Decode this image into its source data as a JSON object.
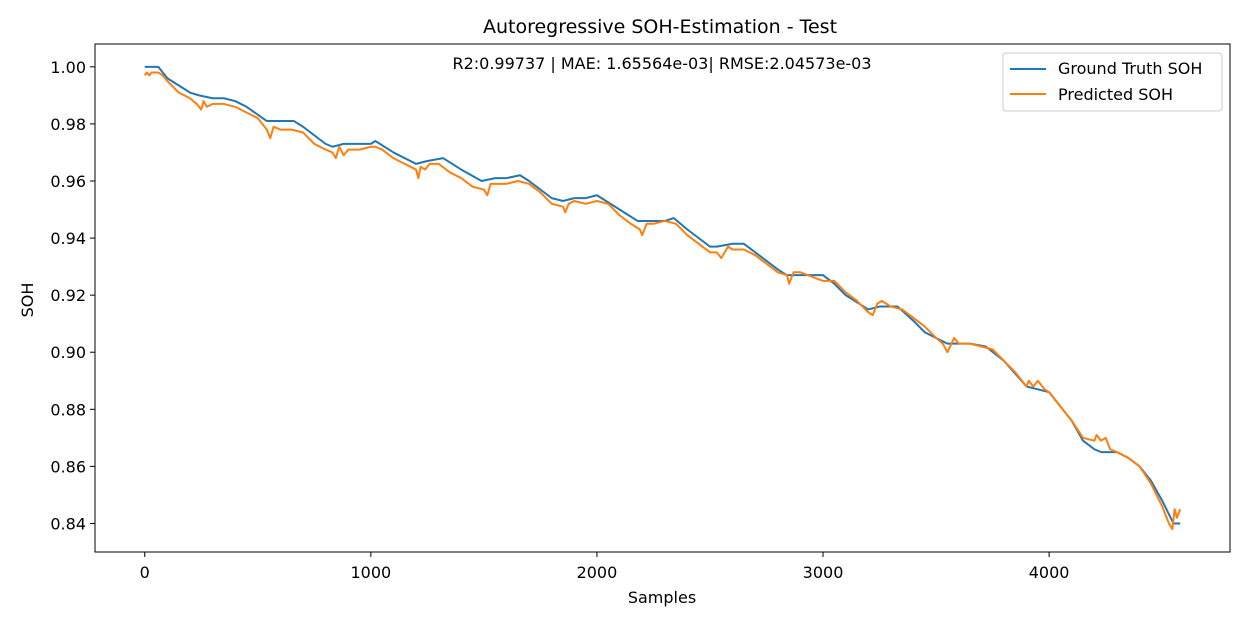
{
  "chart_data": {
    "type": "line",
    "title": "Autoregressive SOH-Estimation - Test",
    "annotation": "R2:0.99737 | MAE: 1.65564e-03| RMSE:2.04573e-03",
    "xlabel": "Samples",
    "ylabel": "SOH",
    "xlim": [
      -220,
      4800
    ],
    "ylim": [
      0.83,
      1.008
    ],
    "x_ticks": [
      0,
      1000,
      2000,
      3000,
      4000
    ],
    "x_tick_labels": [
      "0",
      "1000",
      "2000",
      "3000",
      "4000"
    ],
    "y_ticks": [
      0.84,
      0.86,
      0.88,
      0.9,
      0.92,
      0.94,
      0.96,
      0.98,
      1.0
    ],
    "y_tick_labels": [
      "0.84",
      "0.86",
      "0.88",
      "0.90",
      "0.92",
      "0.94",
      "0.96",
      "0.98",
      "1.00"
    ],
    "grid": false,
    "legend_position": "top-right",
    "series": [
      {
        "name": "Ground Truth SOH",
        "color": "#1f77b4",
        "x": [
          0,
          60,
          100,
          200,
          240,
          300,
          350,
          400,
          450,
          540,
          600,
          660,
          700,
          800,
          830,
          880,
          950,
          1000,
          1020,
          1100,
          1200,
          1250,
          1320,
          1400,
          1490,
          1550,
          1600,
          1660,
          1700,
          1800,
          1850,
          1900,
          1950,
          2000,
          2100,
          2180,
          2250,
          2300,
          2340,
          2400,
          2500,
          2530,
          2600,
          2650,
          2700,
          2800,
          2840,
          2900,
          3000,
          3050,
          3100,
          3200,
          3250,
          3300,
          3330,
          3400,
          3450,
          3500,
          3550,
          3600,
          3650,
          3720,
          3800,
          3900,
          3950,
          4000,
          4050,
          4100,
          4150,
          4200,
          4230,
          4300,
          4350,
          4400,
          4450,
          4500,
          4550,
          4580
        ],
        "y": [
          1.0,
          1.0,
          0.996,
          0.991,
          0.99,
          0.989,
          0.989,
          0.988,
          0.986,
          0.981,
          0.981,
          0.981,
          0.979,
          0.973,
          0.972,
          0.973,
          0.973,
          0.973,
          0.974,
          0.97,
          0.966,
          0.967,
          0.968,
          0.964,
          0.96,
          0.961,
          0.961,
          0.962,
          0.96,
          0.954,
          0.953,
          0.954,
          0.954,
          0.955,
          0.95,
          0.946,
          0.946,
          0.946,
          0.947,
          0.943,
          0.937,
          0.937,
          0.938,
          0.938,
          0.935,
          0.929,
          0.927,
          0.927,
          0.927,
          0.924,
          0.92,
          0.915,
          0.916,
          0.916,
          0.916,
          0.911,
          0.907,
          0.905,
          0.903,
          0.903,
          0.903,
          0.902,
          0.897,
          0.888,
          0.887,
          0.886,
          0.881,
          0.876,
          0.869,
          0.866,
          0.865,
          0.865,
          0.863,
          0.86,
          0.855,
          0.848,
          0.84,
          0.84
        ]
      },
      {
        "name": "Predicted SOH",
        "color": "#ff7f0e",
        "x": [
          0,
          10,
          20,
          30,
          40,
          60,
          80,
          100,
          150,
          200,
          230,
          250,
          260,
          275,
          300,
          350,
          400,
          450,
          500,
          540,
          555,
          570,
          600,
          650,
          700,
          750,
          800,
          830,
          845,
          860,
          880,
          900,
          950,
          1000,
          1020,
          1050,
          1100,
          1150,
          1200,
          1210,
          1220,
          1240,
          1260,
          1300,
          1350,
          1400,
          1450,
          1500,
          1515,
          1530,
          1560,
          1600,
          1650,
          1700,
          1750,
          1800,
          1850,
          1860,
          1875,
          1900,
          1950,
          2000,
          2050,
          2100,
          2150,
          2190,
          2200,
          2220,
          2250,
          2300,
          2350,
          2400,
          2450,
          2500,
          2530,
          2550,
          2580,
          2600,
          2650,
          2700,
          2750,
          2800,
          2840,
          2850,
          2870,
          2900,
          3000,
          3050,
          3100,
          3150,
          3200,
          3220,
          3240,
          3260,
          3300,
          3350,
          3400,
          3450,
          3500,
          3530,
          3550,
          3580,
          3600,
          3650,
          3700,
          3750,
          3800,
          3850,
          3900,
          3910,
          3930,
          3950,
          3980,
          4000,
          4050,
          4100,
          4150,
          4200,
          4210,
          4230,
          4250,
          4270,
          4300,
          4350,
          4400,
          4450,
          4500,
          4530,
          4545,
          4555,
          4565,
          4580
        ],
        "y": [
          0.997,
          0.998,
          0.997,
          0.998,
          0.998,
          0.998,
          0.997,
          0.995,
          0.991,
          0.989,
          0.987,
          0.985,
          0.988,
          0.986,
          0.987,
          0.987,
          0.986,
          0.984,
          0.982,
          0.978,
          0.975,
          0.979,
          0.978,
          0.978,
          0.977,
          0.973,
          0.971,
          0.97,
          0.968,
          0.972,
          0.969,
          0.971,
          0.971,
          0.972,
          0.972,
          0.971,
          0.968,
          0.966,
          0.964,
          0.961,
          0.965,
          0.964,
          0.966,
          0.966,
          0.963,
          0.961,
          0.958,
          0.957,
          0.955,
          0.959,
          0.959,
          0.959,
          0.96,
          0.959,
          0.956,
          0.952,
          0.951,
          0.949,
          0.952,
          0.953,
          0.952,
          0.953,
          0.952,
          0.948,
          0.945,
          0.943,
          0.941,
          0.945,
          0.945,
          0.946,
          0.945,
          0.941,
          0.938,
          0.935,
          0.935,
          0.933,
          0.937,
          0.936,
          0.936,
          0.934,
          0.931,
          0.928,
          0.927,
          0.924,
          0.928,
          0.928,
          0.925,
          0.925,
          0.921,
          0.918,
          0.914,
          0.913,
          0.917,
          0.918,
          0.916,
          0.915,
          0.912,
          0.909,
          0.905,
          0.903,
          0.9,
          0.905,
          0.903,
          0.903,
          0.902,
          0.901,
          0.897,
          0.893,
          0.888,
          0.89,
          0.888,
          0.89,
          0.887,
          0.886,
          0.881,
          0.876,
          0.87,
          0.869,
          0.871,
          0.869,
          0.87,
          0.866,
          0.865,
          0.863,
          0.86,
          0.854,
          0.846,
          0.84,
          0.838,
          0.845,
          0.842,
          0.845
        ]
      }
    ]
  }
}
